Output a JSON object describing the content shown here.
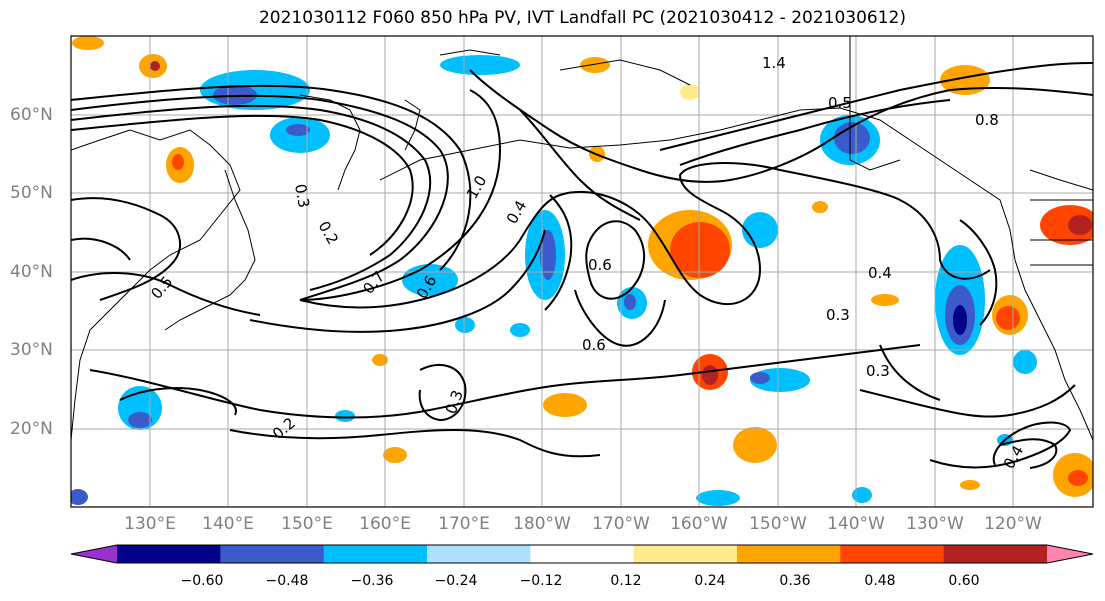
{
  "title": "2021030112 F060 850 hPa PV, IVT Landfall PC (2021030412 - 2021030612)",
  "lat_labels": [
    "60°N",
    "50°N",
    "40°N",
    "30°N",
    "20°N"
  ],
  "lon_labels": [
    "130°E",
    "140°E",
    "150°E",
    "160°E",
    "170°E",
    "180°W",
    "170°W",
    "160°W",
    "150°W",
    "140°W",
    "130°W",
    "120°W"
  ],
  "colorbar": {
    "colors": [
      "#9932CC",
      "#00008B",
      "#3A5BC9",
      "#00BFFF",
      "#ADDFFF",
      "#FFFFFF",
      "#FFEB8C",
      "#FFA500",
      "#FF4500",
      "#B22222",
      "#FF85B0"
    ],
    "tick_labels": [
      "−0.60",
      "−0.48",
      "−0.36",
      "−0.24",
      "−0.12",
      "0.12",
      "0.24",
      "0.36",
      "0.48",
      "0.60"
    ]
  },
  "contour_labels": [
    "1.4",
    "1.0",
    "0.5",
    "0.8",
    "0.3",
    "0.4",
    "0.2",
    "0.6",
    "0.7",
    "0.3",
    "0.3",
    "0.4",
    "0.5",
    "0.2",
    "0.3",
    "0.4",
    "0.6",
    "0.6"
  ],
  "colors": {
    "contour": "#000000",
    "grid": "#a0a0a0",
    "coast": "#000000"
  }
}
